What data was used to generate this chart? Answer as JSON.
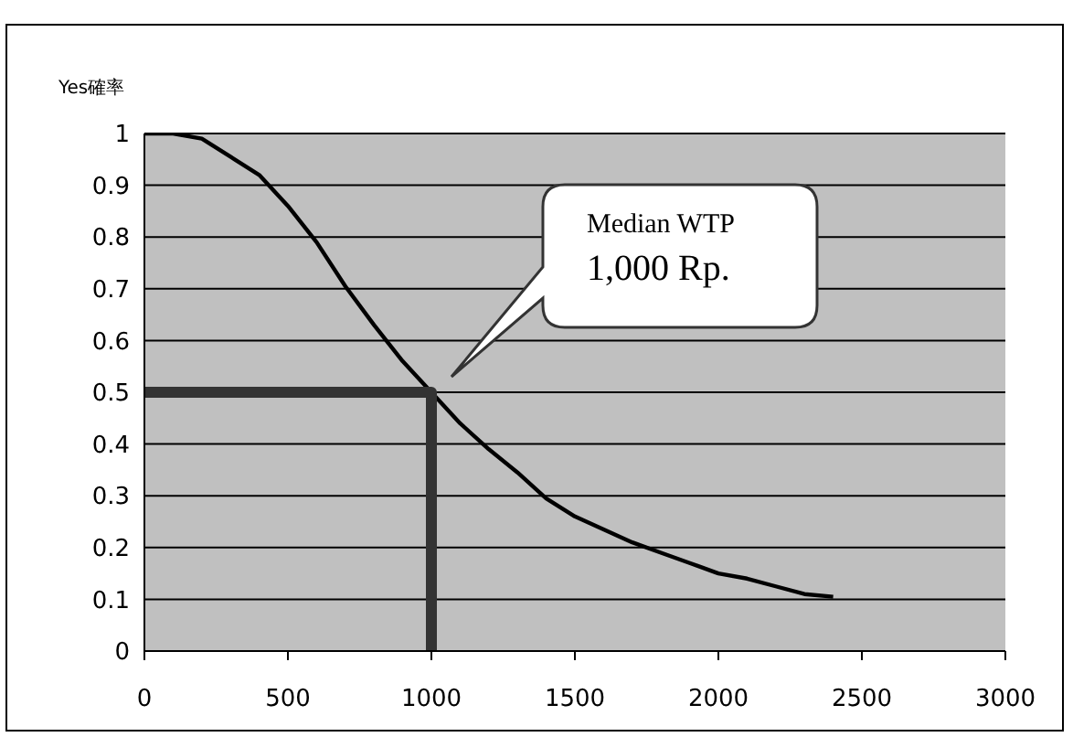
{
  "chart_data": {
    "type": "line",
    "ylabel": "Yes確率",
    "xlim": [
      0,
      3000
    ],
    "xticks": [
      0,
      500,
      1000,
      1500,
      2000,
      2500,
      3000
    ],
    "ylim": [
      0,
      1
    ],
    "yticks": [
      0,
      0.1,
      0.2,
      0.3,
      0.4,
      0.5,
      0.6,
      0.7,
      0.8,
      0.9,
      1
    ],
    "grid": "y",
    "marker": "none",
    "line_style": "solid",
    "series": [
      {
        "color": "#000000",
        "x": [
          0,
          100,
          200,
          300,
          400,
          500,
          600,
          700,
          800,
          900,
          1000,
          1100,
          1200,
          1300,
          1400,
          1500,
          1600,
          1700,
          1800,
          1900,
          2000,
          2100,
          2200,
          2300,
          2400
        ],
        "values": [
          1,
          1,
          0.99,
          0.955,
          0.92,
          0.86,
          0.79,
          0.705,
          0.63,
          0.56,
          0.5,
          0.44,
          0.39,
          0.345,
          0.295,
          0.26,
          0.235,
          0.21,
          0.19,
          0.17,
          0.15,
          0.14,
          0.125,
          0.11,
          0.105
        ]
      },
      {
        "color": "#333333",
        "x": [
          0,
          1000,
          1000
        ],
        "values": [
          0.5,
          0.5,
          0
        ]
      }
    ],
    "annotations": [
      "Median WTP\n1,000 Rp."
    ]
  }
}
